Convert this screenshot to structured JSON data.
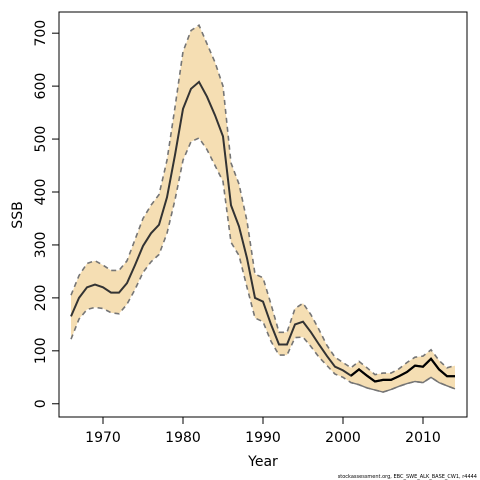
{
  "chart_data": {
    "type": "line",
    "xlabel": "Year",
    "ylabel": "SSB",
    "xlim": [
      1964.5,
      2015.5
    ],
    "ylim": [
      -25,
      740
    ],
    "xticks": [
      1970,
      1980,
      1990,
      2000,
      2010
    ],
    "yticks": [
      0,
      100,
      200,
      300,
      400,
      500,
      600,
      700
    ],
    "grid": false,
    "source_note": "stockassessment.org, EBC_SWE_ALK_BASE_CW1, r4444",
    "colors": {
      "band": "#f5deb3",
      "bound": "#757575",
      "estimate": "#333333",
      "estimate_recent": "#000000",
      "lower_recent": "#757575"
    },
    "x": [
      1966,
      1967,
      1968,
      1969,
      1970,
      1971,
      1972,
      1973,
      1974,
      1975,
      1976,
      1977,
      1978,
      1979,
      1980,
      1981,
      1982,
      1983,
      1984,
      1985,
      1986,
      1987,
      1988,
      1989,
      1990,
      1991,
      1992,
      1993,
      1994,
      1995,
      1996,
      1997,
      1998,
      1999,
      2000,
      2001,
      2002,
      2003,
      2004,
      2005,
      2006,
      2007,
      2008,
      2009,
      2010,
      2011,
      2012,
      2013,
      2014
    ],
    "series": [
      {
        "role": "estimate",
        "values": [
          165,
          200,
          220,
          225,
          220,
          210,
          210,
          228,
          262,
          298,
          322,
          338,
          390,
          470,
          557,
          595,
          608,
          580,
          545,
          505,
          375,
          335,
          275,
          200,
          193,
          150,
          112,
          112,
          150,
          155,
          135,
          112,
          90,
          70,
          63,
          53,
          65,
          53,
          42,
          45,
          45,
          52,
          60,
          72,
          70,
          85,
          65,
          52,
          52
        ]
      },
      {
        "role": "upper",
        "values": [
          205,
          242,
          265,
          270,
          262,
          252,
          252,
          270,
          310,
          350,
          375,
          395,
          460,
          560,
          665,
          705,
          715,
          680,
          645,
          600,
          455,
          415,
          345,
          245,
          238,
          188,
          135,
          135,
          180,
          190,
          168,
          140,
          110,
          88,
          78,
          68,
          80,
          68,
          55,
          58,
          58,
          66,
          78,
          88,
          90,
          102,
          82,
          68,
          72
        ]
      },
      {
        "role": "lower",
        "values": [
          122,
          160,
          178,
          182,
          180,
          172,
          170,
          188,
          216,
          248,
          268,
          282,
          322,
          385,
          460,
          495,
          502,
          480,
          450,
          420,
          305,
          280,
          220,
          162,
          155,
          118,
          92,
          92,
          125,
          126,
          108,
          88,
          72,
          56,
          50,
          40,
          36,
          30,
          26,
          22,
          27,
          33,
          38,
          42,
          40,
          50,
          40,
          34,
          28
        ]
      }
    ]
  }
}
